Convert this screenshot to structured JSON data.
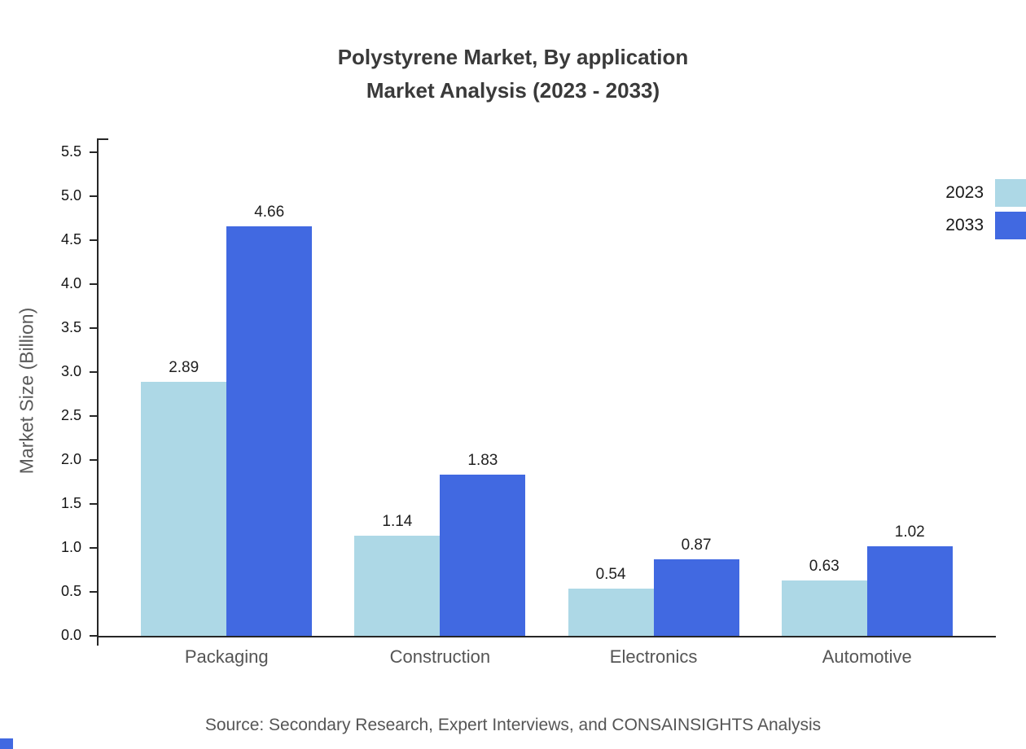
{
  "title": {
    "line1": "Polystyrene Market, By application",
    "line2": "Market Analysis (2023 - 2033)"
  },
  "source": "Source: Secondary Research, Expert Interviews, and CONSAINSIGHTS Analysis",
  "chart_data": {
    "type": "bar",
    "title": "Polystyrene Market, By application Market Analysis (2023 - 2033)",
    "categories": [
      "Packaging",
      "Construction",
      "Electronics",
      "Automotive"
    ],
    "series": [
      {
        "name": "2023",
        "color": "#add8e6",
        "values": [
          2.89,
          1.14,
          0.54,
          0.63
        ]
      },
      {
        "name": "2033",
        "color": "#4169e1",
        "values": [
          4.66,
          1.83,
          0.87,
          1.02
        ]
      }
    ],
    "xlabel": "",
    "ylabel": "Market Size (Billion)",
    "ylim": [
      0,
      5.5
    ],
    "ytick_step": 0.5,
    "grid": false,
    "legend_position": "top-right",
    "value_label_decimals": 2
  },
  "accent_color": "#4169e1"
}
